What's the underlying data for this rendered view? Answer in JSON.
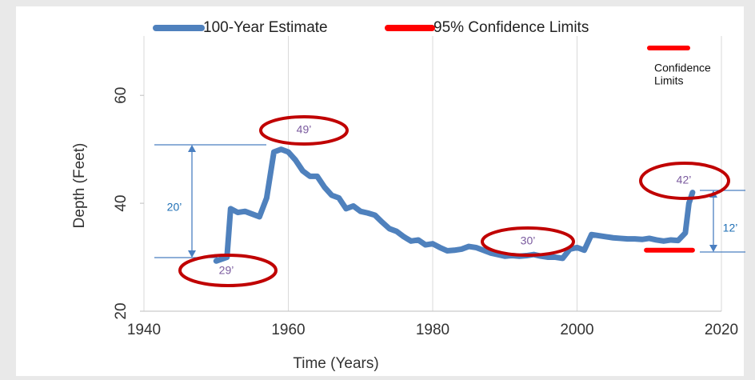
{
  "chart_data": {
    "type": "line",
    "x_label": "Time (Years)",
    "y_label": "Depth (Feet)",
    "xlim": [
      1940,
      2020
    ],
    "xticks": [
      1940,
      1960,
      1980,
      2000,
      2020
    ],
    "ylim": [
      20,
      71
    ],
    "yticks": [
      20,
      40,
      60
    ],
    "grid": true,
    "legend": "top",
    "note_lines": [
      "Confidence",
      "Limits"
    ],
    "annotations": [
      "49’",
      "29’",
      "30’",
      "42’",
      "20’",
      "12’"
    ],
    "series": [
      {
        "name": "100-Year Estimate",
        "color": "#4f81bd",
        "x": [
          1950,
          1951.5,
          1952,
          1953,
          1954,
          1956,
          1957,
          1958,
          1959,
          1960,
          1961,
          1962,
          1963,
          1964,
          1965,
          1966,
          1967,
          1968,
          1969,
          1970,
          1971,
          1972,
          1973,
          1974,
          1975,
          1976,
          1977,
          1978,
          1979,
          1980,
          1981,
          1982,
          1983,
          1984,
          1985,
          1986,
          1987,
          1988,
          1989,
          1990,
          1991,
          1992,
          1993,
          1994,
          1995,
          1996,
          1997,
          1998,
          1999,
          2000,
          2001,
          2002,
          2003,
          2004,
          2005,
          2006,
          2007,
          2008,
          2009,
          2010,
          2011,
          2012,
          2013,
          2014,
          2015,
          2015.5,
          2016
        ],
        "values": [
          29.3,
          30,
          39,
          38.3,
          38.5,
          37.5,
          41,
          49.5,
          50,
          49.5,
          48,
          46,
          45,
          45,
          43,
          41.5,
          41,
          39,
          39.5,
          38.5,
          38.2,
          37.8,
          36.5,
          35.3,
          34.8,
          33.8,
          33,
          33.2,
          32.3,
          32.5,
          31.8,
          31.2,
          31.3,
          31.5,
          32,
          31.8,
          31.3,
          30.8,
          30.5,
          30.2,
          30.3,
          30.2,
          30.3,
          30.5,
          30.2,
          30,
          30,
          29.8,
          31.5,
          31.8,
          31.3,
          34.2,
          34,
          33.8,
          33.6,
          33.5,
          33.4,
          33.4,
          33.3,
          33.5,
          33.2,
          33,
          33.2,
          33.1,
          34.5,
          40,
          42
        ]
      },
      {
        "name": "95% Confidence Limits",
        "color": "#ff0000",
        "x": [
          2009.6,
          2016
        ],
        "values": [
          31.3,
          31.3
        ]
      }
    ]
  }
}
